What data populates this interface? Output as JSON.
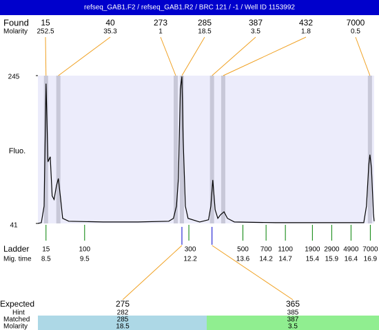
{
  "header": {
    "title": "refseq_GAB1.F2 / refseq_GAB1.R2 / BRC 121  / -1 / Well ID 1153992"
  },
  "found": {
    "label": "Found",
    "molarity_label": "Molarity",
    "peaks": [
      {
        "size": 15,
        "molarity": 252.5,
        "time": 8.5
      },
      {
        "size": 40,
        "molarity": 35.3,
        "time": 8.82
      },
      {
        "size": 273,
        "molarity": 1,
        "time": 11.86
      },
      {
        "size": 285,
        "molarity": 18.5,
        "time": 12.02
      },
      {
        "size": 387,
        "molarity": 3.5,
        "time": 12.8
      },
      {
        "size": 432,
        "molarity": 1.8,
        "time": 13.09
      },
      {
        "size": 7000,
        "molarity": 0.5,
        "time": 16.89
      }
    ]
  },
  "chart_data": {
    "type": "line",
    "ylabel": "Fluo.",
    "color": "#000000",
    "x": [
      8.29,
      8.38,
      8.45,
      8.5,
      8.55,
      8.61,
      8.66,
      8.71,
      8.77,
      8.82,
      8.88,
      8.93,
      9.09,
      9.98,
      10.88,
      11.68,
      11.8,
      11.88,
      11.93,
      11.98,
      12.02,
      12.05,
      12.11,
      12.18,
      12.48,
      12.71,
      12.77,
      12.82,
      12.88,
      12.95,
      13.02,
      13.11,
      13.2,
      13.38,
      14.45,
      15.88,
      16.73,
      16.8,
      16.86,
      16.89,
      16.93,
      16.98,
      17.0
    ],
    "values": [
      41,
      42,
      65,
      234,
      126,
      133,
      79,
      74,
      93,
      103,
      74,
      48,
      44,
      43,
      43,
      44,
      48,
      65,
      103,
      226,
      244,
      160,
      65,
      48,
      43,
      46,
      65,
      101,
      60,
      48,
      53,
      57,
      48,
      43,
      42,
      42,
      42,
      65,
      122,
      136,
      117,
      55,
      44
    ],
    "xlim": [
      8.29,
      17.0
    ],
    "ylim": [
      41,
      245
    ],
    "yticks": [
      41,
      245
    ]
  },
  "ladder": {
    "label": "Ladder",
    "time_label": "Mig. time",
    "sizes": [
      15,
      100,
      300,
      500,
      700,
      1100,
      1900,
      2900,
      4900,
      7000
    ],
    "times": [
      8.5,
      9.5,
      12.2,
      13.6,
      14.2,
      14.7,
      15.4,
      15.9,
      16.4,
      16.9
    ]
  },
  "expected": {
    "label": "Expected",
    "hint_label": "Hint",
    "matched_label": "Matched",
    "molarity_label": "Molarity",
    "items": [
      {
        "size": 275,
        "hint": 282,
        "matched": 285,
        "molarity": 18.5,
        "time": 12.02
      },
      {
        "size": 365,
        "hint": 385,
        "matched": 387,
        "molarity": 3.5,
        "time": 12.8
      }
    ]
  }
}
